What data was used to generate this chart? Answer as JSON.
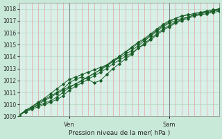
{
  "title": "",
  "xlabel": "Pression niveau de la mer( hPa )",
  "ylabel": "",
  "bg_color": "#c8e8d8",
  "plot_bg_color": "#d8f0e8",
  "grid_color_h": "#b0d8c0",
  "grid_color_v": "#e8a0a0",
  "line_color": "#1a5e28",
  "vline_color": "#888888",
  "ylim": [
    1009,
    1018.5
  ],
  "xlim": [
    0,
    96
  ],
  "ven_x": 24,
  "sam_x": 72,
  "ven_label": "Ven",
  "sam_label": "Sam",
  "yticks": [
    1009,
    1010,
    1011,
    1012,
    1013,
    1014,
    1015,
    1016,
    1017,
    1018
  ],
  "series": [
    [
      0.0,
      1009.1,
      3,
      1009.4,
      6,
      1009.6,
      9,
      1009.8,
      12,
      1010.0,
      15,
      1010.2,
      18,
      1010.4,
      21,
      1010.7,
      24,
      1011.2,
      27,
      1011.5,
      30,
      1011.8,
      33,
      1012.1,
      36,
      1012.4,
      39,
      1012.7,
      42,
      1013.0,
      45,
      1013.4,
      48,
      1013.7,
      51,
      1014.0,
      54,
      1014.3,
      57,
      1014.7,
      60,
      1015.0,
      63,
      1015.4,
      66,
      1015.8,
      69,
      1016.2,
      72,
      1016.5,
      75,
      1016.8,
      78,
      1017.0,
      81,
      1017.2,
      84,
      1017.4,
      87,
      1017.5,
      90,
      1017.6,
      93,
      1017.7,
      96,
      1017.8
    ],
    [
      0.0,
      1009.1,
      3,
      1009.5,
      6,
      1009.8,
      9,
      1010.1,
      12,
      1010.4,
      15,
      1010.7,
      18,
      1011.0,
      21,
      1011.3,
      24,
      1011.8,
      27,
      1012.1,
      30,
      1012.3,
      33,
      1012.1,
      36,
      1011.8,
      39,
      1012.0,
      42,
      1012.5,
      45,
      1013.0,
      48,
      1013.4,
      51,
      1013.8,
      54,
      1014.2,
      57,
      1014.7,
      60,
      1015.1,
      63,
      1015.5,
      66,
      1015.9,
      69,
      1016.3,
      72,
      1016.6,
      75,
      1016.9,
      78,
      1017.1,
      81,
      1017.3,
      84,
      1017.5,
      87,
      1017.6,
      90,
      1017.7,
      93,
      1017.8,
      96,
      1017.9
    ],
    [
      0.0,
      1009.1,
      3,
      1009.5,
      6,
      1009.8,
      9,
      1010.2,
      12,
      1010.5,
      15,
      1010.9,
      18,
      1011.3,
      21,
      1011.7,
      24,
      1012.1,
      27,
      1012.3,
      30,
      1012.5,
      33,
      1012.7,
      36,
      1012.9,
      39,
      1013.1,
      42,
      1013.3,
      45,
      1013.6,
      48,
      1013.9,
      51,
      1014.2,
      54,
      1014.5,
      57,
      1014.9,
      60,
      1015.3,
      63,
      1015.7,
      66,
      1016.1,
      69,
      1016.5,
      72,
      1016.8,
      75,
      1017.0,
      78,
      1017.2,
      81,
      1017.3,
      84,
      1017.5,
      87,
      1017.6,
      90,
      1017.7,
      93,
      1017.8,
      96,
      1017.9
    ],
    [
      0.0,
      1009.1,
      3,
      1009.4,
      6,
      1009.7,
      9,
      1010.0,
      12,
      1010.3,
      15,
      1010.6,
      18,
      1010.9,
      21,
      1011.2,
      24,
      1011.5,
      27,
      1011.7,
      30,
      1012.0,
      33,
      1012.3,
      36,
      1012.6,
      39,
      1012.9,
      42,
      1013.2,
      45,
      1013.6,
      48,
      1014.0,
      51,
      1014.4,
      54,
      1014.8,
      57,
      1015.2,
      60,
      1015.5,
      63,
      1015.9,
      66,
      1016.3,
      69,
      1016.7,
      72,
      1017.0,
      75,
      1017.2,
      78,
      1017.4,
      81,
      1017.5,
      84,
      1017.6,
      87,
      1017.7,
      90,
      1017.8,
      93,
      1017.9,
      96,
      1018.0
    ],
    [
      0.0,
      1009.1,
      3,
      1009.4,
      6,
      1009.7,
      9,
      1009.9,
      12,
      1010.1,
      15,
      1010.3,
      18,
      1010.6,
      21,
      1011.0,
      24,
      1011.4,
      27,
      1011.7,
      30,
      1012.0,
      33,
      1012.3,
      36,
      1012.6,
      39,
      1012.9,
      42,
      1013.3,
      45,
      1013.7,
      48,
      1014.0,
      51,
      1014.4,
      54,
      1014.7,
      57,
      1015.1,
      60,
      1015.4,
      63,
      1015.8,
      66,
      1016.2,
      69,
      1016.6,
      72,
      1016.9,
      75,
      1017.2,
      78,
      1017.4,
      81,
      1017.5,
      84,
      1017.6,
      87,
      1017.7,
      90,
      1017.8,
      93,
      1017.9,
      96,
      1018.0
    ]
  ]
}
